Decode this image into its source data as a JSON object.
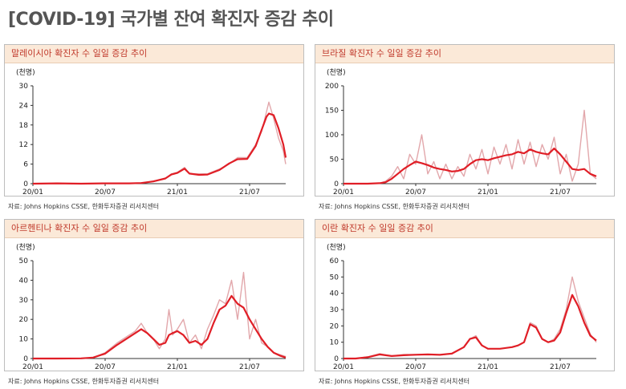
{
  "title": "[COVID-19] 국가별 잔여 확진자 증감 추이",
  "colors": {
    "daily": "#e2a7ab",
    "avg": "#e01e26",
    "header_bg": "#fbe9d8",
    "header_text": "#c0392b"
  },
  "source_text": "자료: Johns Hopkins CSSE, 한화투자증권 리서치센터",
  "chart_data": [
    {
      "type": "line",
      "title": "말레이시아 확진자 수 일일 증감 추이",
      "unit": "(천명)",
      "ylim": [
        0,
        30
      ],
      "yticks": [
        0,
        6,
        12,
        18,
        24,
        30
      ],
      "xlim": [
        0,
        21
      ],
      "xticks": [
        {
          "x": 0,
          "label": "20/01"
        },
        {
          "x": 6,
          "label": "20/07"
        },
        {
          "x": 12,
          "label": "21/01"
        },
        {
          "x": 18,
          "label": "21/07"
        }
      ],
      "series": [
        {
          "role": "daily",
          "x": [
            0,
            2,
            4,
            6,
            8,
            9,
            10,
            11,
            11.5,
            12,
            12.6,
            13,
            13.8,
            14.5,
            15.5,
            16.3,
            17,
            17.8,
            18.5,
            19,
            19.4,
            19.6,
            20,
            20.4,
            20.8,
            21
          ],
          "y": [
            0,
            0.1,
            0,
            0.1,
            0.1,
            0.2,
            0.8,
            1.5,
            3,
            3.5,
            5,
            3,
            3,
            3,
            4.5,
            6,
            8,
            8,
            12,
            16,
            22,
            25,
            20,
            14,
            10,
            6
          ]
        },
        {
          "role": "avg",
          "x": [
            0,
            2,
            4,
            6,
            8,
            9,
            10,
            11,
            11.5,
            12,
            12.6,
            13,
            13.8,
            14.5,
            15.5,
            16.3,
            17,
            17.8,
            18.5,
            19,
            19.4,
            19.6,
            20,
            20.4,
            20.8,
            21
          ],
          "y": [
            0,
            0.1,
            0,
            0.1,
            0.1,
            0.2,
            0.7,
            1.6,
            2.8,
            3.3,
            4.6,
            3.1,
            2.7,
            2.8,
            4.2,
            6.2,
            7.5,
            7.6,
            11.5,
            16.5,
            20.5,
            21.5,
            21,
            17,
            12,
            8
          ]
        }
      ]
    },
    {
      "type": "line",
      "title": "브라질 확진자 수 일일 증감 추이",
      "unit": "(천명)",
      "ylim": [
        0,
        200
      ],
      "yticks": [
        0,
        50,
        100,
        150,
        200
      ],
      "xlim": [
        0,
        21
      ],
      "xticks": [
        {
          "x": 0,
          "label": "20/01"
        },
        {
          "x": 6,
          "label": "20/07"
        },
        {
          "x": 12,
          "label": "21/01"
        },
        {
          "x": 18,
          "label": "21/07"
        }
      ],
      "series": [
        {
          "role": "daily",
          "x": [
            0,
            1,
            2,
            3,
            3.5,
            4,
            4.5,
            5,
            5.5,
            6,
            6.5,
            7,
            7.5,
            8,
            8.5,
            9,
            9.5,
            10,
            10.5,
            11,
            11.5,
            12,
            12.5,
            13,
            13.5,
            14,
            14.5,
            15,
            15.5,
            16,
            16.5,
            17,
            17.5,
            18,
            18.5,
            19,
            19.5,
            20,
            20.5,
            21
          ],
          "y": [
            0,
            0,
            0,
            1,
            5,
            15,
            35,
            10,
            60,
            40,
            100,
            20,
            45,
            10,
            40,
            10,
            35,
            15,
            60,
            30,
            70,
            20,
            75,
            40,
            80,
            30,
            90,
            40,
            85,
            35,
            80,
            50,
            95,
            20,
            60,
            5,
            40,
            150,
            20,
            10
          ]
        },
        {
          "role": "avg",
          "x": [
            0,
            1,
            2,
            3,
            3.5,
            4,
            4.5,
            5,
            5.5,
            6,
            6.5,
            7,
            7.5,
            8,
            8.5,
            9,
            9.5,
            10,
            10.5,
            11,
            11.5,
            12,
            12.5,
            13,
            13.5,
            14,
            14.5,
            15,
            15.5,
            16,
            16.5,
            17,
            17.5,
            18,
            18.5,
            19,
            19.5,
            20,
            20.5,
            21
          ],
          "y": [
            0,
            0,
            0,
            1,
            3,
            10,
            20,
            30,
            38,
            45,
            42,
            38,
            33,
            30,
            28,
            25,
            26,
            30,
            40,
            48,
            50,
            48,
            52,
            55,
            58,
            60,
            65,
            62,
            70,
            65,
            62,
            60,
            72,
            60,
            45,
            30,
            28,
            30,
            20,
            15
          ]
        }
      ]
    },
    {
      "type": "line",
      "title": "아르헨티나 확진자 수 일일 증감 추이",
      "unit": "(천명)",
      "ylim": [
        0,
        50
      ],
      "yticks": [
        0,
        10,
        20,
        30,
        40,
        50
      ],
      "xlim": [
        0,
        21
      ],
      "xticks": [
        {
          "x": 0,
          "label": "20/01"
        },
        {
          "x": 6,
          "label": "20/07"
        },
        {
          "x": 12,
          "label": "21/01"
        },
        {
          "x": 18,
          "label": "21/07"
        }
      ],
      "series": [
        {
          "role": "daily",
          "x": [
            0,
            2,
            4,
            5,
            6,
            7,
            8,
            8.5,
            9,
            9.5,
            10,
            10.5,
            11,
            11.3,
            11.6,
            12,
            12.5,
            13,
            13.5,
            14,
            14.5,
            15,
            15.5,
            16,
            16.5,
            17,
            17.5,
            18,
            18.5,
            19,
            19.5,
            20,
            20.5,
            21
          ],
          "y": [
            0,
            0,
            0.1,
            0.5,
            3,
            8,
            12,
            14,
            18,
            13,
            10,
            5,
            10,
            25,
            12,
            15,
            20,
            8,
            12,
            5,
            15,
            22,
            30,
            28,
            40,
            20,
            44,
            10,
            20,
            8,
            6,
            3,
            2,
            1
          ]
        },
        {
          "role": "avg",
          "x": [
            0,
            2,
            4,
            5,
            6,
            7,
            8,
            8.5,
            9,
            9.5,
            10,
            10.5,
            11,
            11.3,
            11.6,
            12,
            12.5,
            13,
            13.5,
            14,
            14.5,
            15,
            15.5,
            16,
            16.5,
            17,
            17.5,
            18,
            18.5,
            19,
            19.5,
            20,
            20.5,
            21
          ],
          "y": [
            0,
            0,
            0.1,
            0.5,
            2.5,
            7,
            11,
            13,
            15,
            13,
            10,
            7,
            8,
            12,
            13,
            14,
            12,
            8,
            9,
            7,
            10,
            18,
            25,
            27,
            32,
            28,
            26,
            20,
            15,
            10,
            6,
            3,
            1.5,
            0.5
          ]
        }
      ]
    },
    {
      "type": "line",
      "title": "이란 확진자 수 일일 증감 추이",
      "unit": "(천명)",
      "ylim": [
        0,
        60
      ],
      "yticks": [
        0,
        10,
        20,
        30,
        40,
        50,
        60
      ],
      "xlim": [
        0,
        21
      ],
      "xticks": [
        {
          "x": 0,
          "label": "20/01"
        },
        {
          "x": 6,
          "label": "20/07"
        },
        {
          "x": 12,
          "label": "21/01"
        },
        {
          "x": 18,
          "label": "21/07"
        }
      ],
      "series": [
        {
          "role": "daily",
          "x": [
            0,
            1,
            2,
            3,
            4,
            5,
            6,
            7,
            8,
            9,
            10,
            10.5,
            11,
            11.5,
            12,
            13,
            14,
            14.5,
            15,
            15.5,
            16,
            16.5,
            17,
            17.5,
            18,
            18.5,
            19,
            19.5,
            20,
            20.5,
            21
          ],
          "y": [
            0,
            0,
            1,
            3,
            1.5,
            2.5,
            2.5,
            2.5,
            2,
            3,
            7,
            12,
            14,
            8,
            6,
            6,
            7,
            8,
            10,
            22,
            20,
            12,
            10,
            12,
            18,
            30,
            50,
            35,
            25,
            15,
            10
          ]
        },
        {
          "role": "avg",
          "x": [
            0,
            1,
            2,
            3,
            4,
            5,
            6,
            7,
            8,
            9,
            10,
            10.5,
            11,
            11.5,
            12,
            13,
            14,
            14.5,
            15,
            15.5,
            16,
            16.5,
            17,
            17.5,
            18,
            18.5,
            19,
            19.5,
            20,
            20.5,
            21
          ],
          "y": [
            0,
            0,
            0.8,
            2.5,
            1.5,
            2,
            2.3,
            2.5,
            2.3,
            3,
            7,
            12,
            13,
            8,
            6,
            6,
            7,
            8,
            10,
            21,
            19,
            12,
            10,
            11,
            16,
            28,
            39,
            32,
            22,
            14,
            11
          ]
        }
      ]
    }
  ]
}
